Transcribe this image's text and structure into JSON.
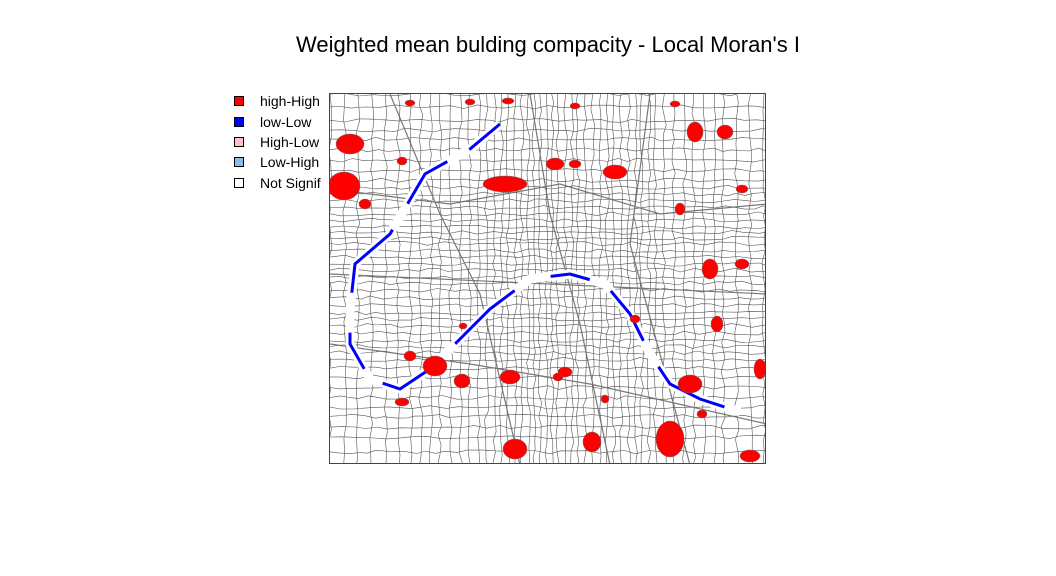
{
  "title": "Weighted mean bulding compacity - Local Moran's I",
  "legend": {
    "items": [
      {
        "label": "high-High",
        "color": "#ff0000"
      },
      {
        "label": "low-Low",
        "color": "#0000ff"
      },
      {
        "label": "High-Low",
        "color": "#ffc0cb"
      },
      {
        "label": "Low-High",
        "color": "#87bde8"
      },
      {
        "label": "Not Signif",
        "color": "#ffffff"
      }
    ]
  },
  "map": {
    "boundary_color": "#555555",
    "background": "#ffffff"
  }
}
